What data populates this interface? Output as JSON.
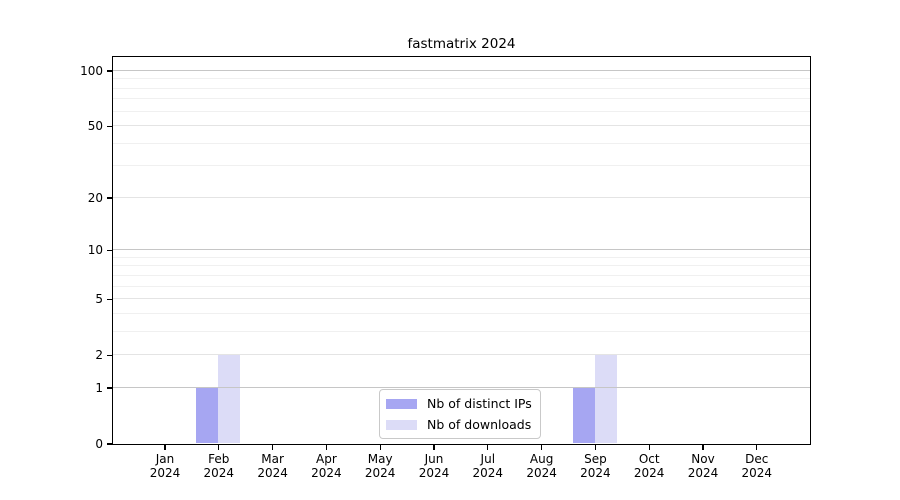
{
  "chart_data": {
    "type": "bar",
    "title": "fastmatrix 2024",
    "year_label": "2024",
    "categories": [
      "Jan",
      "Feb",
      "Mar",
      "Apr",
      "May",
      "Jun",
      "Jul",
      "Aug",
      "Sep",
      "Oct",
      "Nov",
      "Dec"
    ],
    "series": [
      {
        "name": "Nb of distinct IPs",
        "color": "#a6a6f2",
        "values": [
          0,
          1,
          0,
          0,
          0,
          0,
          0,
          0,
          1,
          0,
          0,
          0
        ]
      },
      {
        "name": "Nb of downloads",
        "color": "#dcdcf7",
        "values": [
          0,
          2,
          0,
          0,
          0,
          0,
          0,
          0,
          2,
          0,
          0,
          0
        ]
      }
    ],
    "y_axis": {
      "scale": "log1p",
      "tick_labels": [
        "0",
        "1",
        "2",
        "5",
        "10",
        "20",
        "50",
        "100"
      ],
      "tick_values": [
        0,
        1,
        2,
        5,
        10,
        20,
        50,
        100
      ],
      "gridlines_decade": [
        1,
        10,
        100
      ],
      "gridlines_major": [
        2,
        5,
        20,
        50
      ],
      "gridlines_minor": [
        3,
        4,
        6,
        7,
        8,
        9,
        30,
        40,
        60,
        70,
        80,
        90
      ]
    },
    "x_axis": {
      "tick_count": 12
    },
    "legend": {
      "position": "bottom-center-inside"
    },
    "colors": {
      "grid_decade": "#c6c6c6",
      "grid_major": "#e4e4e4",
      "grid_minor": "#f0f0f0",
      "spine": "#000000",
      "background": "#ffffff"
    }
  }
}
